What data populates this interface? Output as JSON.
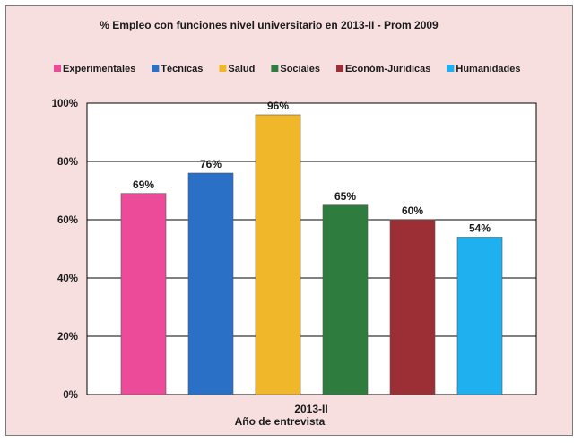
{
  "chart_data": {
    "type": "bar",
    "title": "% Empleo con funciones nivel universitario en 2013-II - Prom 2009",
    "xlabel": "Año de entrevista",
    "ylabel": "",
    "categories": [
      "2013-II"
    ],
    "ylim": [
      0,
      100
    ],
    "yticks": [
      "0%",
      "20%",
      "40%",
      "60%",
      "80%",
      "100%"
    ],
    "grid": true,
    "legend_position": "top",
    "series": [
      {
        "name": "Experimentales",
        "values": [
          69
        ],
        "label": "69%",
        "color": "#ec4b9a"
      },
      {
        "name": "Técnicas",
        "values": [
          76
        ],
        "label": "76%",
        "color": "#2a70c7"
      },
      {
        "name": "Salud",
        "values": [
          96
        ],
        "label": "96%",
        "color": "#f0b72b"
      },
      {
        "name": "Sociales",
        "values": [
          65
        ],
        "label": "65%",
        "color": "#2f7d3e"
      },
      {
        "name": "Económ-Jurídicas",
        "values": [
          60
        ],
        "label": "60%",
        "color": "#9c2f35"
      },
      {
        "name": "Humanidades",
        "values": [
          54
        ],
        "label": "54%",
        "color": "#1fb0ef"
      }
    ]
  },
  "colors": {
    "frame_background": "#f7dfe0",
    "plot_background": "#ffffff",
    "gridline": "#000000"
  }
}
